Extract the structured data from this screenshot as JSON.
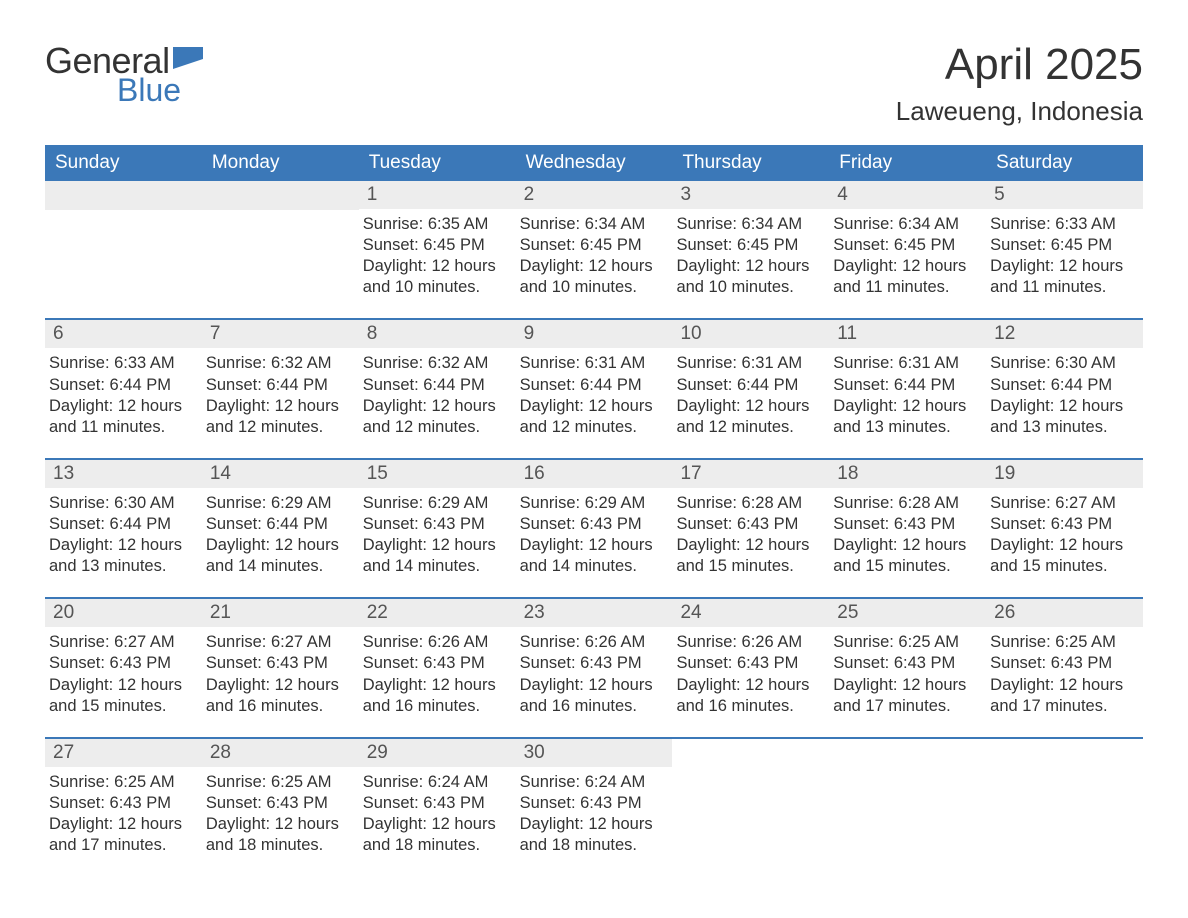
{
  "logo": {
    "word1": "General",
    "word2": "Blue",
    "flag_color": "#3b78b8"
  },
  "title": "April 2025",
  "location": "Laweueng, Indonesia",
  "colors": {
    "header_bg": "#3b78b8",
    "header_text": "#ffffff",
    "daynum_bg": "#ededed",
    "text": "#333333",
    "week_border": "#3b78b8"
  },
  "typography": {
    "title_fontsize": 44,
    "location_fontsize": 26,
    "dayheader_fontsize": 19,
    "daynum_fontsize": 19,
    "body_fontsize": 16.5
  },
  "day_headers": [
    "Sunday",
    "Monday",
    "Tuesday",
    "Wednesday",
    "Thursday",
    "Friday",
    "Saturday"
  ],
  "weeks": [
    [
      {
        "empty": true
      },
      {
        "empty": true
      },
      {
        "n": "1",
        "sunrise": "Sunrise: 6:35 AM",
        "sunset": "Sunset: 6:45 PM",
        "daylight1": "Daylight: 12 hours",
        "daylight2": "and 10 minutes."
      },
      {
        "n": "2",
        "sunrise": "Sunrise: 6:34 AM",
        "sunset": "Sunset: 6:45 PM",
        "daylight1": "Daylight: 12 hours",
        "daylight2": "and 10 minutes."
      },
      {
        "n": "3",
        "sunrise": "Sunrise: 6:34 AM",
        "sunset": "Sunset: 6:45 PM",
        "daylight1": "Daylight: 12 hours",
        "daylight2": "and 10 minutes."
      },
      {
        "n": "4",
        "sunrise": "Sunrise: 6:34 AM",
        "sunset": "Sunset: 6:45 PM",
        "daylight1": "Daylight: 12 hours",
        "daylight2": "and 11 minutes."
      },
      {
        "n": "5",
        "sunrise": "Sunrise: 6:33 AM",
        "sunset": "Sunset: 6:45 PM",
        "daylight1": "Daylight: 12 hours",
        "daylight2": "and 11 minutes."
      }
    ],
    [
      {
        "n": "6",
        "sunrise": "Sunrise: 6:33 AM",
        "sunset": "Sunset: 6:44 PM",
        "daylight1": "Daylight: 12 hours",
        "daylight2": "and 11 minutes."
      },
      {
        "n": "7",
        "sunrise": "Sunrise: 6:32 AM",
        "sunset": "Sunset: 6:44 PM",
        "daylight1": "Daylight: 12 hours",
        "daylight2": "and 12 minutes."
      },
      {
        "n": "8",
        "sunrise": "Sunrise: 6:32 AM",
        "sunset": "Sunset: 6:44 PM",
        "daylight1": "Daylight: 12 hours",
        "daylight2": "and 12 minutes."
      },
      {
        "n": "9",
        "sunrise": "Sunrise: 6:31 AM",
        "sunset": "Sunset: 6:44 PM",
        "daylight1": "Daylight: 12 hours",
        "daylight2": "and 12 minutes."
      },
      {
        "n": "10",
        "sunrise": "Sunrise: 6:31 AM",
        "sunset": "Sunset: 6:44 PM",
        "daylight1": "Daylight: 12 hours",
        "daylight2": "and 12 minutes."
      },
      {
        "n": "11",
        "sunrise": "Sunrise: 6:31 AM",
        "sunset": "Sunset: 6:44 PM",
        "daylight1": "Daylight: 12 hours",
        "daylight2": "and 13 minutes."
      },
      {
        "n": "12",
        "sunrise": "Sunrise: 6:30 AM",
        "sunset": "Sunset: 6:44 PM",
        "daylight1": "Daylight: 12 hours",
        "daylight2": "and 13 minutes."
      }
    ],
    [
      {
        "n": "13",
        "sunrise": "Sunrise: 6:30 AM",
        "sunset": "Sunset: 6:44 PM",
        "daylight1": "Daylight: 12 hours",
        "daylight2": "and 13 minutes."
      },
      {
        "n": "14",
        "sunrise": "Sunrise: 6:29 AM",
        "sunset": "Sunset: 6:44 PM",
        "daylight1": "Daylight: 12 hours",
        "daylight2": "and 14 minutes."
      },
      {
        "n": "15",
        "sunrise": "Sunrise: 6:29 AM",
        "sunset": "Sunset: 6:43 PM",
        "daylight1": "Daylight: 12 hours",
        "daylight2": "and 14 minutes."
      },
      {
        "n": "16",
        "sunrise": "Sunrise: 6:29 AM",
        "sunset": "Sunset: 6:43 PM",
        "daylight1": "Daylight: 12 hours",
        "daylight2": "and 14 minutes."
      },
      {
        "n": "17",
        "sunrise": "Sunrise: 6:28 AM",
        "sunset": "Sunset: 6:43 PM",
        "daylight1": "Daylight: 12 hours",
        "daylight2": "and 15 minutes."
      },
      {
        "n": "18",
        "sunrise": "Sunrise: 6:28 AM",
        "sunset": "Sunset: 6:43 PM",
        "daylight1": "Daylight: 12 hours",
        "daylight2": "and 15 minutes."
      },
      {
        "n": "19",
        "sunrise": "Sunrise: 6:27 AM",
        "sunset": "Sunset: 6:43 PM",
        "daylight1": "Daylight: 12 hours",
        "daylight2": "and 15 minutes."
      }
    ],
    [
      {
        "n": "20",
        "sunrise": "Sunrise: 6:27 AM",
        "sunset": "Sunset: 6:43 PM",
        "daylight1": "Daylight: 12 hours",
        "daylight2": "and 15 minutes."
      },
      {
        "n": "21",
        "sunrise": "Sunrise: 6:27 AM",
        "sunset": "Sunset: 6:43 PM",
        "daylight1": "Daylight: 12 hours",
        "daylight2": "and 16 minutes."
      },
      {
        "n": "22",
        "sunrise": "Sunrise: 6:26 AM",
        "sunset": "Sunset: 6:43 PM",
        "daylight1": "Daylight: 12 hours",
        "daylight2": "and 16 minutes."
      },
      {
        "n": "23",
        "sunrise": "Sunrise: 6:26 AM",
        "sunset": "Sunset: 6:43 PM",
        "daylight1": "Daylight: 12 hours",
        "daylight2": "and 16 minutes."
      },
      {
        "n": "24",
        "sunrise": "Sunrise: 6:26 AM",
        "sunset": "Sunset: 6:43 PM",
        "daylight1": "Daylight: 12 hours",
        "daylight2": "and 16 minutes."
      },
      {
        "n": "25",
        "sunrise": "Sunrise: 6:25 AM",
        "sunset": "Sunset: 6:43 PM",
        "daylight1": "Daylight: 12 hours",
        "daylight2": "and 17 minutes."
      },
      {
        "n": "26",
        "sunrise": "Sunrise: 6:25 AM",
        "sunset": "Sunset: 6:43 PM",
        "daylight1": "Daylight: 12 hours",
        "daylight2": "and 17 minutes."
      }
    ],
    [
      {
        "n": "27",
        "sunrise": "Sunrise: 6:25 AM",
        "sunset": "Sunset: 6:43 PM",
        "daylight1": "Daylight: 12 hours",
        "daylight2": "and 17 minutes."
      },
      {
        "n": "28",
        "sunrise": "Sunrise: 6:25 AM",
        "sunset": "Sunset: 6:43 PM",
        "daylight1": "Daylight: 12 hours",
        "daylight2": "and 18 minutes."
      },
      {
        "n": "29",
        "sunrise": "Sunrise: 6:24 AM",
        "sunset": "Sunset: 6:43 PM",
        "daylight1": "Daylight: 12 hours",
        "daylight2": "and 18 minutes."
      },
      {
        "n": "30",
        "sunrise": "Sunrise: 6:24 AM",
        "sunset": "Sunset: 6:43 PM",
        "daylight1": "Daylight: 12 hours",
        "daylight2": "and 18 minutes."
      },
      {
        "empty": true,
        "noBar": true
      },
      {
        "empty": true,
        "noBar": true
      },
      {
        "empty": true,
        "noBar": true
      }
    ]
  ]
}
